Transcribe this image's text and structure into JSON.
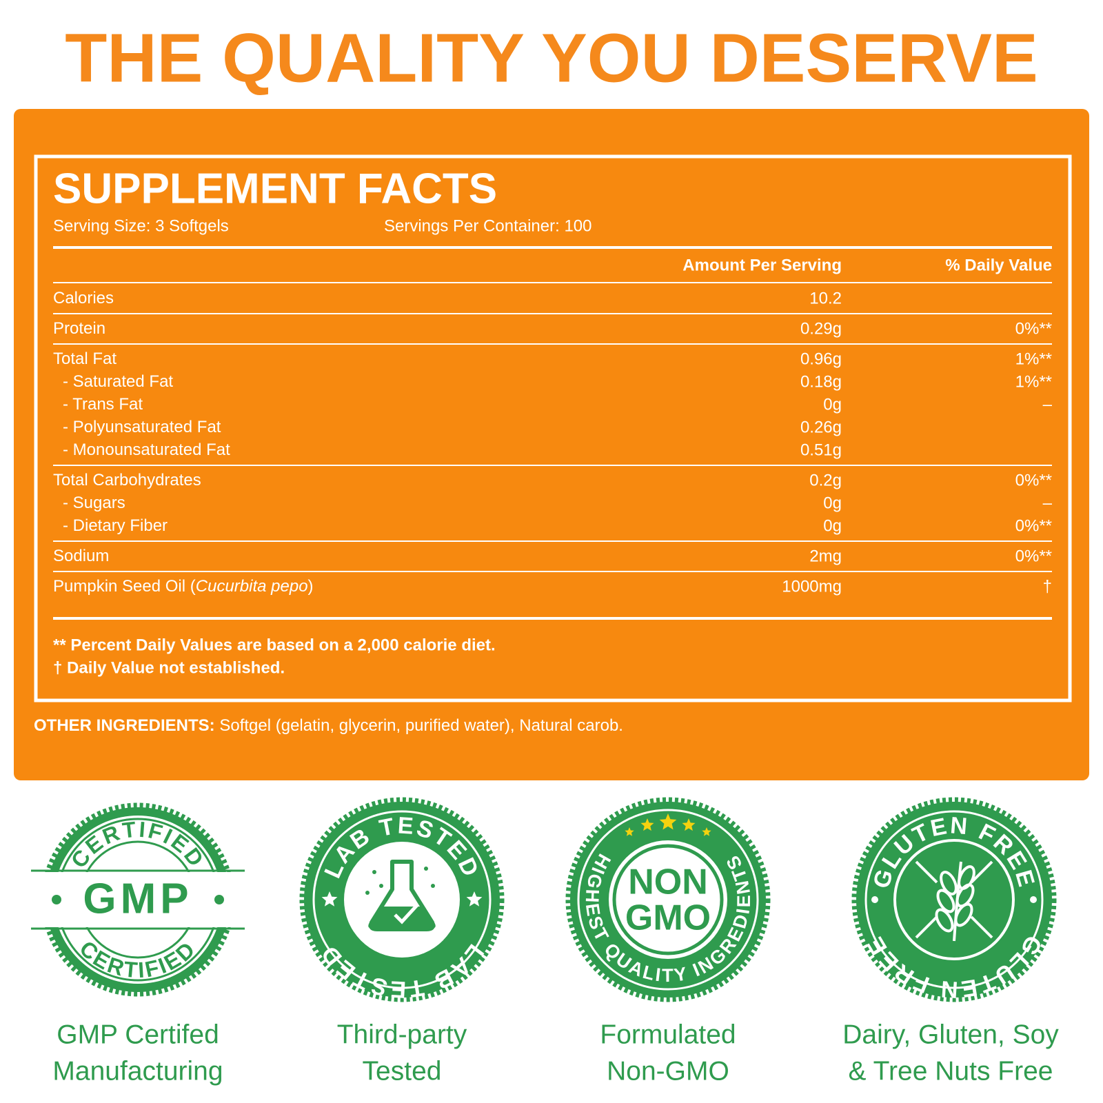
{
  "header": {
    "title": "THE QUALITY YOU DESERVE"
  },
  "facts": {
    "title": "SUPPLEMENT FACTS",
    "serving_size": "Serving Size: 3 Softgels",
    "servings_per_container": "Servings Per Container: 100",
    "columns": [
      "Amount Per Serving",
      "% Daily Value"
    ],
    "groups": [
      [
        {
          "name": "Calories",
          "amount": "10.2"
        }
      ],
      [
        {
          "name": "Protein",
          "amount": "0.29g",
          "dv": "0%**"
        }
      ],
      [
        {
          "name": "Total Fat",
          "amount": "0.96g",
          "dv": "1%**"
        },
        {
          "name": "- Saturated Fat",
          "amount": "0.18g",
          "dv": "1%**",
          "indent": true
        },
        {
          "name": "- Trans Fat",
          "amount": "0g",
          "dv": "–",
          "indent": true
        },
        {
          "name": "- Polyunsaturated Fat",
          "amount": "0.26g",
          "indent": true
        },
        {
          "name": "- Monounsaturated Fat",
          "amount": "0.51g",
          "indent": true
        }
      ],
      [
        {
          "name": "Total Carbohydrates",
          "amount": "0.2g",
          "dv": "0%**"
        },
        {
          "name": "- Sugars",
          "amount": "0g",
          "dv": "–",
          "indent": true
        },
        {
          "name": "- Dietary Fiber",
          "amount": "0g",
          "dv": "0%**",
          "indent": true
        }
      ],
      [
        {
          "name": "Sodium",
          "amount": "2mg",
          "dv": "0%**"
        }
      ],
      [
        {
          "name": "Pumpkin Seed Oil (",
          "name_italic": "Cucurbita pepo",
          "name_after": ")",
          "amount": "1000mg",
          "dv": "†"
        }
      ]
    ],
    "footnotes": [
      "** Percent Daily Values are based on a 2,000 calorie diet.",
      "† Daily Value not established."
    ]
  },
  "other_ingredients": {
    "label": "OTHER INGREDIENTS:",
    "text": "Softgel (gelatin, glycerin, purified water), Natural carob."
  },
  "badges": [
    {
      "top": "CERTIFIED",
      "center": "GMP",
      "bottom": "CERTIFIED",
      "caption": [
        "GMP Certifed",
        "Manufacturing"
      ]
    },
    {
      "top": "LAB TESTED",
      "bottom": "LAB TESTED",
      "caption": [
        "Third-party",
        "Tested"
      ]
    },
    {
      "center": [
        "NON",
        "GMO"
      ],
      "ring": "HIGHEST QUALITY INGREDIENTS",
      "caption": [
        "Formulated",
        "Non-GMO"
      ]
    },
    {
      "top": "GLUTEN FREE",
      "bottom": "GLUTEN FREE",
      "caption": [
        "Dairy, Gluten, Soy",
        "& Tree Nuts Free"
      ]
    }
  ]
}
